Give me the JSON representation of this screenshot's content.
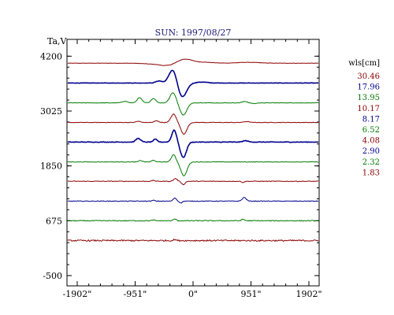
{
  "chart_data": {
    "type": "line",
    "title": "SUN: 1997/08/27",
    "ylabel": "Ta,V",
    "xlabel": "",
    "xlim": [
      -2070,
      2070
    ],
    "ylim": [
      -720,
      4560
    ],
    "x_ticks": [
      -1902,
      -951,
      0,
      951,
      1902
    ],
    "x_tick_labels": [
      "-1902\"",
      "-951\"",
      "0\"",
      "951\"",
      "1902\""
    ],
    "y_ticks": [
      4200,
      3025,
      1850,
      675,
      -500
    ],
    "y_tick_labels": [
      "4200",
      "3025",
      "1850",
      "675",
      "-500"
    ],
    "grid": false,
    "legend_title": "wls[cm]",
    "legend_position": "right",
    "series": [
      {
        "name": "30.46",
        "color": "#8b0000",
        "baseline": 4050,
        "noise": 4,
        "features": [
          [
            -420,
            -60,
            300
          ],
          [
            -150,
            110,
            180
          ],
          [
            -600,
            12,
            120
          ],
          [
            180,
            20,
            200
          ],
          [
            900,
            18,
            250
          ]
        ]
      },
      {
        "name": "17.96",
        "color": "#00008b",
        "baseline": 3625,
        "noise": 4,
        "features": [
          [
            -330,
            300,
            90
          ],
          [
            -180,
            -310,
            100
          ],
          [
            -560,
            45,
            70
          ],
          [
            150,
            20,
            120
          ]
        ]
      },
      {
        "name": "13.95",
        "color": "#007a00",
        "baseline": 3200,
        "noise": 5,
        "features": [
          [
            -330,
            220,
            70
          ],
          [
            -160,
            -260,
            80
          ],
          [
            -650,
            95,
            55
          ],
          [
            -880,
            110,
            55
          ],
          [
            -1120,
            35,
            60
          ],
          [
            850,
            30,
            60
          ],
          [
            1000,
            -15,
            60
          ]
        ]
      },
      {
        "name": "10.17",
        "color": "#8b0000",
        "baseline": 2780,
        "noise": 5,
        "features": [
          [
            -320,
            180,
            60
          ],
          [
            -150,
            -250,
            70
          ],
          [
            -600,
            35,
            50
          ],
          [
            -900,
            25,
            50
          ],
          [
            880,
            20,
            60
          ]
        ]
      },
      {
        "name": "8.17",
        "color": "#00008b",
        "baseline": 2360,
        "noise": 6,
        "features": [
          [
            -310,
            260,
            55
          ],
          [
            -160,
            -330,
            70
          ],
          [
            -620,
            60,
            45
          ],
          [
            -900,
            80,
            55
          ],
          [
            860,
            30,
            60
          ]
        ]
      },
      {
        "name": "6.52",
        "color": "#007a00",
        "baseline": 1935,
        "noise": 6,
        "features": [
          [
            -320,
            160,
            50
          ],
          [
            -150,
            -300,
            70
          ],
          [
            -650,
            35,
            40
          ],
          [
            -860,
            30,
            40
          ]
        ]
      },
      {
        "name": "4.08",
        "color": "#8b0000",
        "baseline": 1520,
        "noise": 7,
        "features": [
          [
            -290,
            60,
            40
          ],
          [
            -160,
            -70,
            40
          ],
          [
            -650,
            20,
            30
          ],
          [
            820,
            -25,
            30
          ]
        ]
      },
      {
        "name": "2.90",
        "color": "#00008b",
        "baseline": 1095,
        "noise": 7,
        "features": [
          [
            -300,
            70,
            35
          ],
          [
            -200,
            -40,
            30
          ],
          [
            -650,
            18,
            30
          ],
          [
            840,
            80,
            45
          ]
        ]
      },
      {
        "name": "2.32",
        "color": "#007a00",
        "baseline": 675,
        "noise": 9,
        "features": [
          [
            -300,
            40,
            30
          ],
          [
            -650,
            15,
            30
          ],
          [
            820,
            30,
            35
          ]
        ]
      },
      {
        "name": "1.83",
        "color": "#8b0000",
        "baseline": 250,
        "noise": 15,
        "features": [
          [
            -300,
            25,
            25
          ]
        ]
      }
    ]
  }
}
